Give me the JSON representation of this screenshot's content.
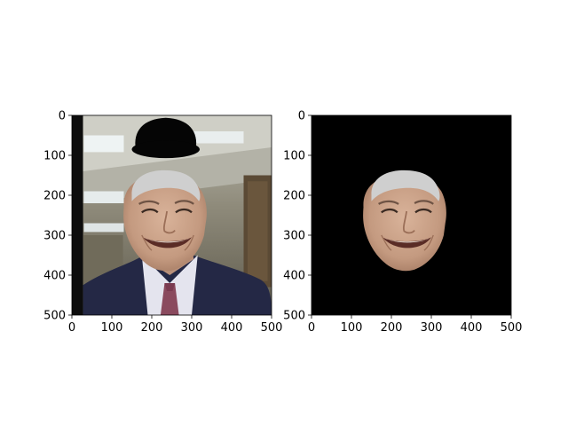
{
  "chart_data": [
    {
      "type": "image",
      "content": "photo of a smiling man in a dark suit, white shirt and striped tie, in an office with fluorescent ceiling lights, with a black bowler hat drawn above his head",
      "xticks": [
        0,
        100,
        200,
        300,
        400,
        500
      ],
      "yticks": [
        0,
        100,
        200,
        300,
        400,
        500
      ],
      "xlim": [
        0,
        500
      ],
      "ylim": [
        500,
        0
      ],
      "overlay": {
        "shape": "bowler-hat",
        "color": "#000000"
      }
    },
    {
      "type": "image",
      "content": "the same face cropped out by a face mask on a black background",
      "xticks": [
        0,
        100,
        200,
        300,
        400,
        500
      ],
      "yticks": [
        0,
        100,
        200,
        300,
        400,
        500
      ],
      "xlim": [
        0,
        500
      ],
      "ylim": [
        500,
        0
      ],
      "background": "#000000"
    }
  ],
  "colors": {
    "skin": "#c9a287",
    "hair": "#c8c8c8",
    "suit": "#242845",
    "shirt": "#e4e4ee",
    "tie": "#8a4a5e",
    "office_wall": "#7d7a6b",
    "ceiling": "#d4d3cb",
    "light_panel": "#eef3f3"
  }
}
